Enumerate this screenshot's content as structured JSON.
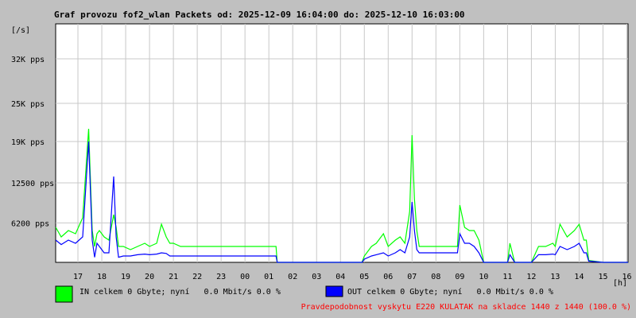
{
  "chart_data": {
    "type": "line",
    "title": "Graf provozu fof2_wlan Packets od: 2025-12-09 16:04:00 do: 2025-12-10 16:03:00",
    "y_unit_label": "[/s]",
    "x_unit_label": "[h]",
    "y_ticks": [
      {
        "value": 6200,
        "label": "6200 pps"
      },
      {
        "value": 12500,
        "label": "12500 pps"
      },
      {
        "value": 19000,
        "label": "19K pps"
      },
      {
        "value": 25000,
        "label": "25K pps"
      },
      {
        "value": 32000,
        "label": "32K pps"
      }
    ],
    "ylim": [
      0,
      37500
    ],
    "x_start_hour": 16.0667,
    "x_end_hour": 40.05,
    "x_tick_labels": [
      "17",
      "18",
      "19",
      "20",
      "21",
      "22",
      "23",
      "00",
      "01",
      "02",
      "03",
      "04",
      "05",
      "06",
      "07",
      "08",
      "09",
      "10",
      "11",
      "12",
      "13",
      "14",
      "15",
      "16"
    ],
    "grid": true,
    "series": [
      {
        "name": "IN",
        "color": "#00ff00",
        "x": [
          16.07,
          16.3,
          16.6,
          16.9,
          17.2,
          17.45,
          17.6,
          17.7,
          17.8,
          17.9,
          18.1,
          18.3,
          18.5,
          18.6,
          18.7,
          18.9,
          19.2,
          19.5,
          19.8,
          20.0,
          20.3,
          20.5,
          20.7,
          20.85,
          21.0,
          21.3,
          21.6,
          22.0,
          23.0,
          24.0,
          25.0,
          25.3,
          25.35,
          26.0,
          27.0,
          28.0,
          28.9,
          29.0,
          29.3,
          29.5,
          29.8,
          30.0,
          30.3,
          30.5,
          30.7,
          30.9,
          31.0,
          31.1,
          31.2,
          31.3,
          31.6,
          32.0,
          32.6,
          32.9,
          33.0,
          33.2,
          33.4,
          33.6,
          33.8,
          34.0,
          34.1,
          34.2,
          35.0,
          35.1,
          35.3,
          35.5,
          35.7,
          36.0,
          36.3,
          36.6,
          36.9,
          37.0,
          37.2,
          37.5,
          37.8,
          38.0,
          38.2,
          38.3,
          38.4,
          39.0,
          39.5,
          40.05
        ],
        "values": [
          5500,
          4000,
          5000,
          4500,
          7000,
          21000,
          5000,
          2500,
          4500,
          5000,
          4000,
          3500,
          7500,
          5500,
          2500,
          2500,
          2000,
          2500,
          3000,
          2500,
          3000,
          6000,
          4000,
          3000,
          3000,
          2500,
          2500,
          2500,
          2500,
          2500,
          2500,
          2500,
          0,
          0,
          0,
          0,
          0,
          1000,
          2500,
          3000,
          4500,
          2500,
          3500,
          4000,
          3000,
          8000,
          20000,
          10000,
          5000,
          2500,
          2500,
          2500,
          2500,
          2500,
          9000,
          5500,
          5000,
          5000,
          3500,
          0,
          0,
          0,
          0,
          3000,
          0,
          0,
          0,
          0,
          2500,
          2500,
          3000,
          2500,
          6000,
          4000,
          5000,
          6000,
          3500,
          3500,
          300,
          0,
          0,
          0
        ]
      },
      {
        "name": "OUT",
        "color": "#0000ff",
        "x": [
          16.07,
          16.3,
          16.6,
          16.9,
          17.2,
          17.45,
          17.6,
          17.7,
          17.8,
          17.9,
          18.1,
          18.3,
          18.5,
          18.6,
          18.7,
          18.9,
          19.2,
          19.5,
          19.8,
          20.0,
          20.3,
          20.5,
          20.7,
          20.85,
          21.0,
          21.3,
          21.6,
          22.0,
          23.0,
          24.0,
          25.0,
          25.3,
          25.35,
          26.0,
          27.0,
          28.0,
          28.9,
          29.0,
          29.3,
          29.5,
          29.8,
          30.0,
          30.3,
          30.5,
          30.7,
          30.9,
          31.0,
          31.1,
          31.2,
          31.3,
          31.6,
          32.0,
          32.6,
          32.9,
          33.0,
          33.2,
          33.4,
          33.6,
          33.8,
          34.0,
          34.1,
          34.2,
          35.0,
          35.1,
          35.3,
          35.5,
          35.7,
          36.0,
          36.3,
          36.6,
          36.9,
          37.0,
          37.2,
          37.5,
          37.8,
          38.0,
          38.2,
          38.3,
          38.4,
          39.0,
          39.5,
          40.05
        ],
        "values": [
          3500,
          2800,
          3500,
          3000,
          4000,
          19000,
          3500,
          800,
          3000,
          2500,
          1500,
          1500,
          13500,
          4000,
          800,
          1000,
          1000,
          1200,
          1300,
          1200,
          1300,
          1500,
          1400,
          1000,
          1000,
          1000,
          1000,
          1000,
          1000,
          1000,
          1000,
          1000,
          0,
          0,
          0,
          0,
          0,
          500,
          1000,
          1200,
          1500,
          1000,
          1500,
          2000,
          1500,
          4000,
          9500,
          5000,
          2000,
          1500,
          1500,
          1500,
          1500,
          1500,
          4500,
          3000,
          3000,
          2500,
          1500,
          0,
          0,
          0,
          0,
          1200,
          0,
          0,
          0,
          0,
          1200,
          1200,
          1300,
          1200,
          2500,
          2000,
          2500,
          3000,
          1500,
          1500,
          200,
          0,
          0,
          0
        ]
      }
    ]
  },
  "legend": {
    "in_text": "IN celkem 0 Gbyte; nyní   0.0 Mbit/s 0.0 %",
    "in_color": "#00ff00",
    "out_text": "OUT celkem 0 Gbyte; nyní   0.0 Mbit/s 0.0 %",
    "out_color": "#0000ff"
  },
  "footer": {
    "text": "Pravdepodobnost vyskytu E220 KULATAK na skladce 1440 z 1440 (100.0 %)",
    "color": "#ff0000"
  }
}
